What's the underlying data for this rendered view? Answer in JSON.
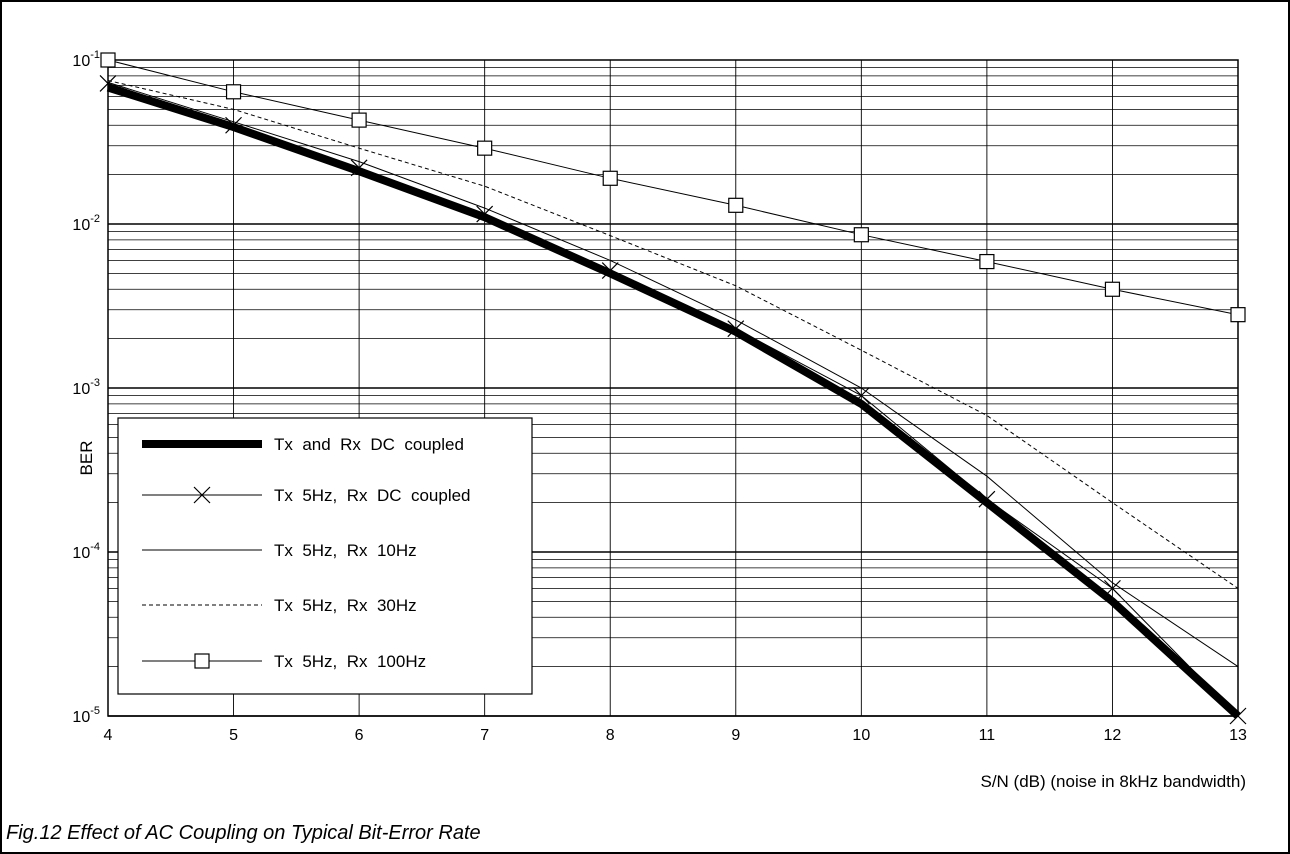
{
  "chart_data": {
    "type": "line",
    "title": "",
    "xlabel": "S/N  (dB)  (noise  in  8kHz  bandwidth)",
    "ylabel": "BER",
    "x_scale": "linear",
    "y_scale": "log",
    "xlim": [
      4,
      13
    ],
    "ylim": [
      1e-05,
      0.1
    ],
    "x_ticks": [
      "4",
      "5",
      "6",
      "7",
      "8",
      "9",
      "10",
      "11",
      "12",
      "13"
    ],
    "y_ticks": [
      {
        "base": "10",
        "exp": "-1"
      },
      {
        "base": "10",
        "exp": "-2"
      },
      {
        "base": "10",
        "exp": "-3"
      },
      {
        "base": "10",
        "exp": "-4"
      },
      {
        "base": "10",
        "exp": "-5"
      }
    ],
    "grid": true,
    "legend_position": "bottom-left",
    "x": [
      4,
      5,
      6,
      7,
      8,
      9,
      10,
      11,
      12,
      13
    ],
    "series": [
      {
        "name": "Tx  and  Rx  DC  coupled",
        "style": "thick",
        "marker": "none",
        "values": [
          0.068,
          0.039,
          0.021,
          0.011,
          0.005,
          0.0022,
          0.0008,
          0.0002,
          5e-05,
          1e-05
        ]
      },
      {
        "name": "Tx  5Hz,  Rx  DC  coupled",
        "style": "thin",
        "marker": "x",
        "values": [
          0.072,
          0.04,
          0.022,
          0.0115,
          0.0052,
          0.0023,
          0.0009,
          0.00021,
          6e-05,
          1e-05
        ]
      },
      {
        "name": "Tx  5Hz,  Rx  10Hz",
        "style": "thin",
        "marker": "none",
        "values": [
          0.073,
          0.042,
          0.024,
          0.0125,
          0.006,
          0.0026,
          0.001,
          0.00029,
          6.5e-05,
          2e-05
        ]
      },
      {
        "name": "Tx  5Hz,  Rx  30Hz",
        "style": "dashed",
        "marker": "none",
        "values": [
          0.075,
          0.05,
          0.029,
          0.017,
          0.0085,
          0.0042,
          0.0017,
          0.00068,
          0.0002,
          6e-05
        ]
      },
      {
        "name": "Tx  5Hz,  Rx  100Hz",
        "style": "thin",
        "marker": "square",
        "values": [
          0.1,
          0.064,
          0.043,
          0.029,
          0.019,
          0.013,
          0.0086,
          0.0059,
          0.004,
          0.0028
        ]
      }
    ]
  },
  "caption": "Fig.12 Effect of AC Coupling on Typical Bit-Error Rate"
}
